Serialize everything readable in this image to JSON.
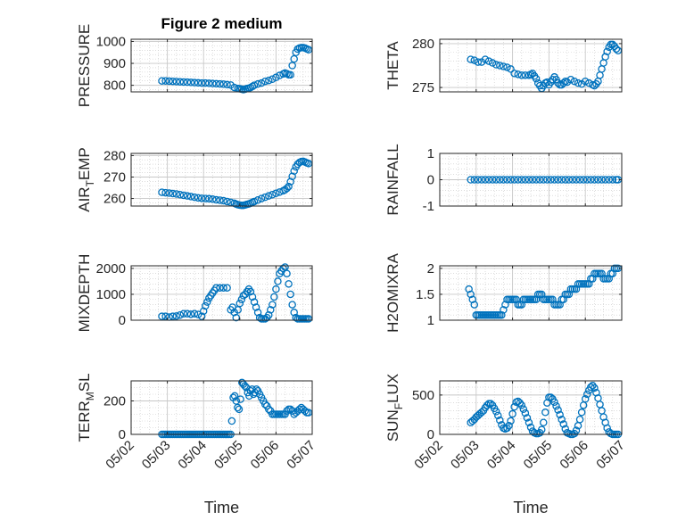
{
  "figure_title": "Figure 2 medium",
  "colors": {
    "marker": "#0072BD",
    "axis": "#262626",
    "grid": "#c8c8c8"
  },
  "chart_data": [
    {
      "type": "scatter",
      "title": "Figure 2 medium",
      "ylabel": "PRESSURE",
      "xlabel": "",
      "xlim": [
        "05/02",
        "05/07"
      ],
      "ylim": [
        770,
        1010
      ],
      "yticks": [
        "800",
        "900",
        "1000"
      ],
      "xticks": [],
      "grid": true,
      "x": [
        2.85,
        2.95,
        3.05,
        3.15,
        3.25,
        3.35,
        3.45,
        3.55,
        3.65,
        3.75,
        3.85,
        3.95,
        4.05,
        4.15,
        4.25,
        4.35,
        4.45,
        4.55,
        4.65,
        4.75,
        4.85,
        4.95,
        5.0,
        5.05,
        5.1,
        5.15,
        5.2,
        5.25,
        5.3,
        5.35,
        5.4,
        5.5,
        5.6,
        5.7,
        5.8,
        5.9,
        6.0,
        6.1,
        6.2,
        6.25,
        6.3,
        6.35,
        6.4,
        6.45,
        6.5,
        6.55,
        6.6,
        6.65,
        6.7,
        6.75,
        6.8,
        6.85,
        6.9
      ],
      "y": [
        820,
        820,
        819,
        818,
        817,
        816,
        815,
        814,
        813,
        812,
        811,
        810,
        810,
        809,
        808,
        807,
        806,
        805,
        803,
        801,
        790,
        785,
        784,
        782,
        780,
        782,
        785,
        787,
        790,
        795,
        800,
        806,
        810,
        818,
        822,
        828,
        836,
        845,
        852,
        856,
        853,
        848,
        848,
        890,
        920,
        950,
        965,
        970,
        972,
        972,
        970,
        966,
        962
      ]
    },
    {
      "type": "scatter",
      "ylabel": "THETA",
      "xlabel": "",
      "xlim": [
        "05/02",
        "05/07"
      ],
      "ylim": [
        274.5,
        280.5
      ],
      "yticks": [
        "275",
        "280"
      ],
      "xticks": [],
      "grid": true,
      "x": [
        2.85,
        2.95,
        3.05,
        3.15,
        3.25,
        3.35,
        3.45,
        3.55,
        3.65,
        3.75,
        3.85,
        3.95,
        4.05,
        4.15,
        4.25,
        4.35,
        4.45,
        4.5,
        4.55,
        4.6,
        4.65,
        4.7,
        4.75,
        4.8,
        4.85,
        4.9,
        4.95,
        5.0,
        5.05,
        5.1,
        5.15,
        5.2,
        5.25,
        5.3,
        5.35,
        5.4,
        5.45,
        5.5,
        5.6,
        5.7,
        5.8,
        5.9,
        6.0,
        6.1,
        6.2,
        6.25,
        6.3,
        6.35,
        6.4,
        6.45,
        6.5,
        6.55,
        6.6,
        6.65,
        6.7,
        6.75,
        6.8,
        6.85,
        6.9
      ],
      "y": [
        278.2,
        278.1,
        277.9,
        277.9,
        278.2,
        278.0,
        277.8,
        277.6,
        277.5,
        277.4,
        277.3,
        277.1,
        276.6,
        276.5,
        276.4,
        276.4,
        276.4,
        276.5,
        276.6,
        276.3,
        276.0,
        275.5,
        275.2,
        274.9,
        275.2,
        275.5,
        275.6,
        275.3,
        275.6,
        275.9,
        276.2,
        275.9,
        275.5,
        275.3,
        275.3,
        275.5,
        275.7,
        275.6,
        275.9,
        275.7,
        275.5,
        275.4,
        275.7,
        275.5,
        275.3,
        275.2,
        275.4,
        275.7,
        276.4,
        277.1,
        277.8,
        278.5,
        279.1,
        279.6,
        279.9,
        279.9,
        279.7,
        279.4,
        279.2
      ]
    },
    {
      "type": "scatter",
      "ylabel": "AIR_TEMP",
      "xlabel": "",
      "xlim": [
        "05/02",
        "05/07"
      ],
      "ylim": [
        256.5,
        281
      ],
      "yticks": [
        "260",
        "270",
        "280"
      ],
      "xticks": [],
      "grid": true,
      "x": [
        2.85,
        2.95,
        3.05,
        3.15,
        3.25,
        3.35,
        3.45,
        3.55,
        3.65,
        3.75,
        3.85,
        3.95,
        4.05,
        4.15,
        4.25,
        4.35,
        4.45,
        4.55,
        4.65,
        4.75,
        4.85,
        4.9,
        4.95,
        5.0,
        5.05,
        5.1,
        5.15,
        5.2,
        5.25,
        5.3,
        5.35,
        5.4,
        5.5,
        5.6,
        5.7,
        5.8,
        5.9,
        6.0,
        6.1,
        6.2,
        6.25,
        6.3,
        6.35,
        6.4,
        6.45,
        6.5,
        6.55,
        6.6,
        6.65,
        6.7,
        6.75,
        6.8,
        6.85,
        6.9
      ],
      "y": [
        262.9,
        262.7,
        262.5,
        262.3,
        262.1,
        261.8,
        261.5,
        261.2,
        260.9,
        260.6,
        260.3,
        260.1,
        260.0,
        259.9,
        259.7,
        259.4,
        259.2,
        259.0,
        258.6,
        258.2,
        257.8,
        257.4,
        257.1,
        256.9,
        256.8,
        256.8,
        257.0,
        257.3,
        257.5,
        257.8,
        258.2,
        258.6,
        259.3,
        260.0,
        260.6,
        261.2,
        261.8,
        262.4,
        263.0,
        263.6,
        264.1,
        264.7,
        265.6,
        267.8,
        270.3,
        272.8,
        274.7,
        276.0,
        276.8,
        277.2,
        277.3,
        277.0,
        276.6,
        276.3
      ]
    },
    {
      "type": "scatter",
      "ylabel": "RAINFALL",
      "xlabel": "",
      "xlim": [
        "05/02",
        "05/07"
      ],
      "ylim": [
        -1,
        1
      ],
      "yticks": [
        "-1",
        "0",
        "1"
      ],
      "xticks": [],
      "grid": true,
      "x": [
        2.85,
        2.95,
        3.05,
        3.15,
        3.25,
        3.35,
        3.45,
        3.55,
        3.65,
        3.75,
        3.85,
        3.95,
        4.05,
        4.15,
        4.25,
        4.35,
        4.45,
        4.55,
        4.65,
        4.75,
        4.85,
        4.95,
        5.05,
        5.15,
        5.25,
        5.35,
        5.45,
        5.55,
        5.65,
        5.75,
        5.85,
        5.95,
        6.05,
        6.15,
        6.25,
        6.35,
        6.45,
        6.55,
        6.65,
        6.75,
        6.85,
        6.9
      ],
      "y": [
        0,
        0,
        0,
        0,
        0,
        0,
        0,
        0,
        0,
        0,
        0,
        0,
        0,
        0,
        0,
        0,
        0,
        0,
        0,
        0,
        0,
        0,
        0,
        0,
        0,
        0,
        0,
        0,
        0,
        0,
        0,
        0,
        0,
        0,
        0,
        0,
        0,
        0,
        0,
        0,
        0,
        0
      ]
    },
    {
      "type": "scatter",
      "ylabel": "MIXDEPTH",
      "xlabel": "",
      "xlim": [
        "05/02",
        "05/07"
      ],
      "ylim": [
        0,
        2100
      ],
      "yticks": [
        "0",
        "1000",
        "2000"
      ],
      "xticks": [],
      "grid": true,
      "x": [
        2.85,
        2.95,
        3.05,
        3.15,
        3.25,
        3.35,
        3.45,
        3.55,
        3.65,
        3.75,
        3.85,
        3.95,
        4.0,
        4.05,
        4.1,
        4.15,
        4.2,
        4.25,
        4.3,
        4.35,
        4.45,
        4.55,
        4.65,
        4.75,
        4.8,
        4.85,
        4.9,
        4.95,
        5.0,
        5.05,
        5.1,
        5.15,
        5.2,
        5.25,
        5.3,
        5.35,
        5.4,
        5.45,
        5.5,
        5.55,
        5.6,
        5.65,
        5.7,
        5.75,
        5.8,
        5.85,
        5.9,
        5.95,
        6.0,
        6.05,
        6.1,
        6.15,
        6.2,
        6.25,
        6.3,
        6.35,
        6.4,
        6.45,
        6.5,
        6.55,
        6.6,
        6.65,
        6.7,
        6.75,
        6.8,
        6.85,
        6.9
      ],
      "y": [
        150,
        150,
        120,
        150,
        160,
        200,
        250,
        250,
        230,
        250,
        220,
        150,
        350,
        550,
        700,
        850,
        950,
        1050,
        1150,
        1250,
        1250,
        1250,
        1250,
        400,
        500,
        300,
        100,
        400,
        650,
        800,
        950,
        1000,
        1100,
        1200,
        1100,
        900,
        700,
        500,
        300,
        100,
        50,
        50,
        50,
        100,
        200,
        400,
        600,
        900,
        1200,
        1500,
        1800,
        1900,
        2000,
        2050,
        1800,
        1400,
        1000,
        600,
        300,
        100,
        50,
        50,
        50,
        50,
        50,
        50,
        50
      ]
    },
    {
      "type": "scatter",
      "ylabel": "H2OMIXRA",
      "xlabel": "",
      "xlim": [
        "05/02",
        "05/07"
      ],
      "ylim": [
        1,
        2.05
      ],
      "yticks": [
        "1",
        "1.5",
        "2"
      ],
      "xticks": [],
      "grid": true,
      "x": [
        2.8,
        2.85,
        2.9,
        2.95,
        3.0,
        3.05,
        3.1,
        3.15,
        3.2,
        3.25,
        3.3,
        3.35,
        3.4,
        3.45,
        3.5,
        3.55,
        3.6,
        3.65,
        3.7,
        3.75,
        3.8,
        3.85,
        3.9,
        3.95,
        4.0,
        4.05,
        4.1,
        4.15,
        4.2,
        4.25,
        4.3,
        4.35,
        4.4,
        4.45,
        4.5,
        4.55,
        4.6,
        4.65,
        4.7,
        4.75,
        4.8,
        4.85,
        4.9,
        4.95,
        5.0,
        5.05,
        5.1,
        5.15,
        5.2,
        5.25,
        5.3,
        5.35,
        5.4,
        5.45,
        5.5,
        5.55,
        5.6,
        5.65,
        5.7,
        5.75,
        5.8,
        5.85,
        5.9,
        5.95,
        6.0,
        6.05,
        6.1,
        6.15,
        6.2,
        6.25,
        6.3,
        6.35,
        6.4,
        6.45,
        6.5,
        6.55,
        6.6,
        6.65,
        6.7,
        6.75,
        6.8,
        6.85,
        6.9
      ],
      "y": [
        1.6,
        1.5,
        1.4,
        1.3,
        1.1,
        1.1,
        1.1,
        1.1,
        1.1,
        1.1,
        1.1,
        1.1,
        1.1,
        1.1,
        1.1,
        1.1,
        1.1,
        1.1,
        1.1,
        1.2,
        1.3,
        1.4,
        1.4,
        1.4,
        1.4,
        1.4,
        1.4,
        1.3,
        1.3,
        1.3,
        1.4,
        1.4,
        1.4,
        1.4,
        1.4,
        1.4,
        1.4,
        1.4,
        1.5,
        1.5,
        1.5,
        1.4,
        1.4,
        1.4,
        1.4,
        1.4,
        1.4,
        1.3,
        1.3,
        1.3,
        1.3,
        1.4,
        1.4,
        1.5,
        1.5,
        1.5,
        1.6,
        1.6,
        1.6,
        1.6,
        1.7,
        1.7,
        1.7,
        1.7,
        1.7,
        1.7,
        1.7,
        1.8,
        1.8,
        1.9,
        1.9,
        1.9,
        1.9,
        1.9,
        1.8,
        1.8,
        1.8,
        1.8,
        1.9,
        1.9,
        2.0,
        2.0,
        2.0
      ]
    },
    {
      "type": "scatter",
      "ylabel": "TERR_MSL",
      "xlabel": "Time",
      "xlim": [
        "05/02",
        "05/07"
      ],
      "ylim": [
        0,
        320
      ],
      "yticks": [
        "0",
        "200"
      ],
      "xticks": [
        "05/02",
        "05/03",
        "05/04",
        "05/05",
        "05/06",
        "05/07"
      ],
      "grid": true,
      "x": [
        2.85,
        2.9,
        2.95,
        3.0,
        3.05,
        3.1,
        3.15,
        3.2,
        3.25,
        3.3,
        3.35,
        3.4,
        3.45,
        3.5,
        3.55,
        3.6,
        3.65,
        3.7,
        3.75,
        3.8,
        3.85,
        3.9,
        3.95,
        4.0,
        4.05,
        4.1,
        4.15,
        4.2,
        4.25,
        4.3,
        4.35,
        4.4,
        4.45,
        4.5,
        4.55,
        4.6,
        4.65,
        4.7,
        4.75,
        4.78,
        4.82,
        4.86,
        4.9,
        4.94,
        4.98,
        5.02,
        5.06,
        5.1,
        5.14,
        5.18,
        5.22,
        5.26,
        5.3,
        5.34,
        5.38,
        5.42,
        5.46,
        5.5,
        5.55,
        5.6,
        5.65,
        5.7,
        5.75,
        5.8,
        5.85,
        5.9,
        5.95,
        6.0,
        6.05,
        6.1,
        6.15,
        6.2,
        6.25,
        6.3,
        6.35,
        6.4,
        6.45,
        6.5,
        6.55,
        6.6,
        6.65,
        6.7,
        6.75,
        6.8,
        6.85,
        6.9
      ],
      "y": [
        0,
        0,
        0,
        0,
        0,
        0,
        0,
        0,
        0,
        0,
        0,
        0,
        0,
        0,
        0,
        0,
        0,
        0,
        0,
        0,
        0,
        0,
        0,
        0,
        0,
        0,
        0,
        0,
        0,
        0,
        0,
        0,
        0,
        0,
        0,
        0,
        0,
        0,
        0,
        80,
        220,
        230,
        200,
        160,
        150,
        210,
        310,
        300,
        290,
        280,
        250,
        230,
        260,
        270,
        240,
        250,
        270,
        260,
        240,
        220,
        200,
        180,
        170,
        150,
        140,
        120,
        120,
        120,
        120,
        120,
        120,
        120,
        120,
        140,
        150,
        150,
        140,
        120,
        130,
        140,
        150,
        160,
        150,
        140,
        130,
        130
      ]
    },
    {
      "type": "scatter",
      "ylabel": "SUN_FLUX",
      "xlabel": "Time",
      "xlim": [
        "05/02",
        "05/07"
      ],
      "ylim": [
        0,
        680
      ],
      "yticks": [
        "0",
        "500"
      ],
      "xticks": [
        "05/02",
        "05/03",
        "05/04",
        "05/05",
        "05/06",
        "05/07"
      ],
      "grid": true,
      "x": [
        2.85,
        2.9,
        2.95,
        3.0,
        3.05,
        3.1,
        3.15,
        3.2,
        3.25,
        3.3,
        3.35,
        3.4,
        3.45,
        3.5,
        3.55,
        3.6,
        3.65,
        3.7,
        3.75,
        3.8,
        3.85,
        3.9,
        3.95,
        4.0,
        4.05,
        4.1,
        4.15,
        4.2,
        4.25,
        4.3,
        4.35,
        4.4,
        4.45,
        4.5,
        4.55,
        4.6,
        4.65,
        4.7,
        4.75,
        4.8,
        4.85,
        4.9,
        4.95,
        5.0,
        5.05,
        5.1,
        5.15,
        5.2,
        5.25,
        5.3,
        5.35,
        5.4,
        5.45,
        5.5,
        5.55,
        5.6,
        5.65,
        5.7,
        5.75,
        5.8,
        5.85,
        5.9,
        5.95,
        6.0,
        6.05,
        6.1,
        6.15,
        6.2,
        6.25,
        6.3,
        6.35,
        6.4,
        6.45,
        6.5,
        6.55,
        6.6,
        6.65,
        6.7,
        6.75,
        6.8,
        6.85,
        6.9
      ],
      "y": [
        150,
        170,
        190,
        220,
        240,
        260,
        280,
        300,
        340,
        370,
        390,
        390,
        370,
        330,
        290,
        240,
        180,
        120,
        80,
        70,
        80,
        110,
        170,
        260,
        350,
        410,
        420,
        400,
        370,
        320,
        270,
        210,
        150,
        90,
        40,
        20,
        10,
        10,
        20,
        60,
        150,
        280,
        400,
        470,
        470,
        450,
        410,
        360,
        310,
        250,
        190,
        130,
        70,
        20,
        10,
        0,
        0,
        10,
        50,
        110,
        190,
        280,
        370,
        450,
        510,
        560,
        600,
        620,
        590,
        530,
        460,
        380,
        300,
        220,
        150,
        80,
        30,
        10,
        0,
        0,
        0,
        0
      ]
    }
  ]
}
